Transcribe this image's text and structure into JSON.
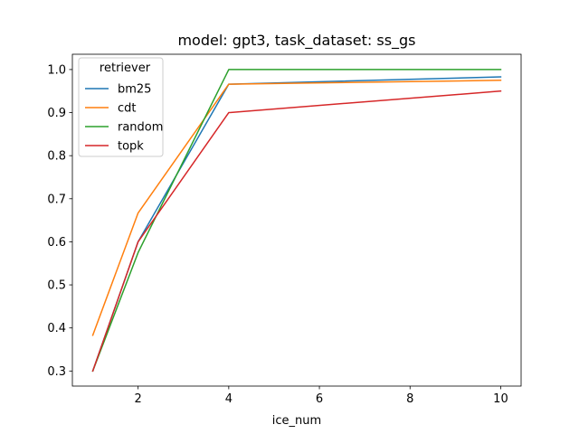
{
  "chart_data": {
    "type": "line",
    "title": "model: gpt3, task_dataset: ss_gs",
    "xlabel": "ice_num",
    "ylabel": "",
    "x": [
      1,
      2,
      4,
      10
    ],
    "xlim": [
      0.55,
      10.45
    ],
    "ylim": [
      0.265,
      1.0355
    ],
    "xticks": [
      2,
      4,
      6,
      8,
      10
    ],
    "yticks": [
      0.3,
      0.4,
      0.5,
      0.6,
      0.7,
      0.8,
      0.9,
      1.0
    ],
    "ytick_labels": [
      "0.3",
      "0.4",
      "0.5",
      "0.6",
      "0.7",
      "0.8",
      "0.9",
      "1.0"
    ],
    "legend": {
      "title": "retriever",
      "position": "upper-left"
    },
    "series": [
      {
        "name": "bm25",
        "color": "#1f77b4",
        "values": [
          0.3,
          0.6,
          0.966,
          0.983
        ]
      },
      {
        "name": "cdt",
        "color": "#ff7f0e",
        "values": [
          0.383,
          0.667,
          0.966,
          0.975
        ]
      },
      {
        "name": "random",
        "color": "#2ca02c",
        "values": [
          0.3,
          0.575,
          1.0,
          1.0
        ]
      },
      {
        "name": "topk",
        "color": "#d62728",
        "values": [
          0.3,
          0.6,
          0.9,
          0.95
        ]
      }
    ]
  }
}
